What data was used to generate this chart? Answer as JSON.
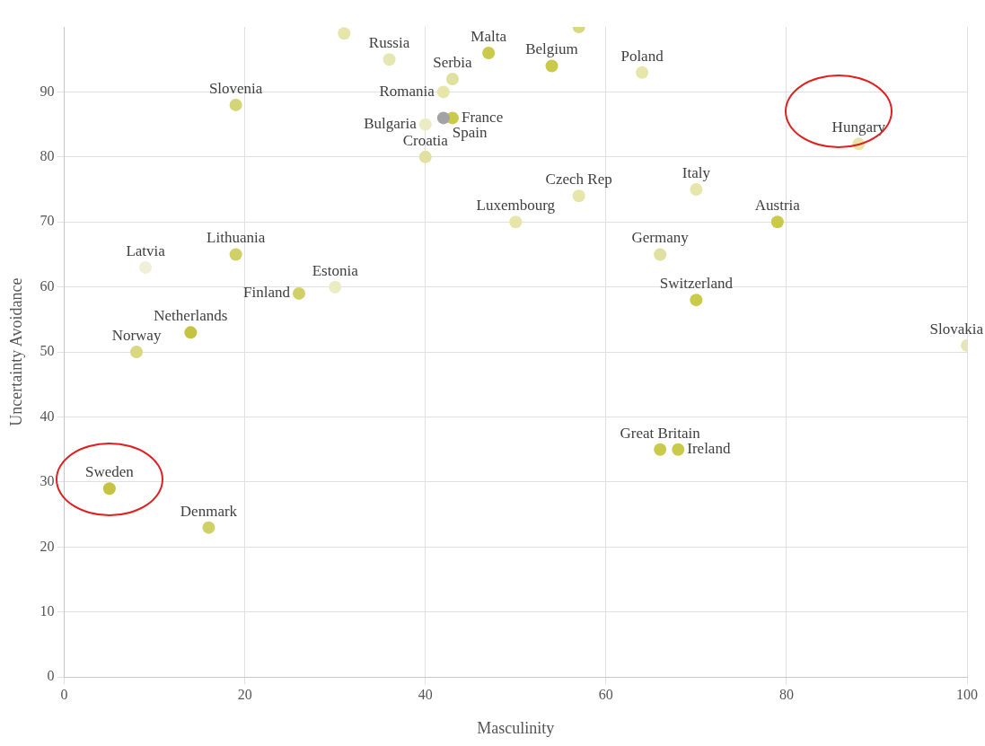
{
  "chart_data": {
    "type": "scatter",
    "xlabel": "Masculinity",
    "ylabel": "Uncertainty Avoidance",
    "xlim": [
      0,
      100
    ],
    "xticks": [
      0,
      20,
      40,
      60,
      80,
      100
    ],
    "ylim": [
      0,
      100
    ],
    "yticks": [
      0,
      10,
      20,
      30,
      40,
      50,
      60,
      70,
      80,
      90
    ],
    "grid": true,
    "legend": false,
    "marker": "circle",
    "x": [
      31,
      57,
      36,
      47,
      54,
      64,
      43,
      42,
      43,
      42,
      40,
      40,
      19,
      88,
      70,
      57,
      50,
      79,
      66,
      70,
      100,
      9,
      19,
      30,
      26,
      14,
      8,
      5,
      16,
      66,
      68
    ],
    "values": [
      99,
      100,
      95,
      96,
      94,
      93,
      92,
      90,
      86,
      86,
      85,
      80,
      88,
      82,
      75,
      74,
      70,
      70,
      65,
      58,
      51,
      63,
      65,
      60,
      59,
      53,
      50,
      29,
      23,
      35,
      35
    ],
    "colors": [
      "#e6e6aa",
      "#d8d880",
      "#e6e6b4",
      "#c9c94a",
      "#c9c94a",
      "#e6e6aa",
      "#e0e0a0",
      "#e6e6aa",
      "#c9c94a",
      "#a3a3a3",
      "#ececc4",
      "#e0e0a0",
      "#d4d478",
      "#e6e6aa",
      "#e6e6aa",
      "#e6e6aa",
      "#e6e6aa",
      "#c9c94a",
      "#e0e0a0",
      "#c9c94a",
      "#e6e6b4",
      "#f0f0d8",
      "#d0d068",
      "#ececc4",
      "#d0d068",
      "#c4c440",
      "#d8d880",
      "#c4c440",
      "#d0d068",
      "#c9c94a",
      "#c9c94a"
    ],
    "annotations": [
      {
        "text": "Russia",
        "x": 36,
        "y": 95
      },
      {
        "text": "Malta",
        "x": 47,
        "y": 96
      },
      {
        "text": "Belgium",
        "x": 54,
        "y": 94
      },
      {
        "text": "Poland",
        "x": 64,
        "y": 93
      },
      {
        "text": "Serbia",
        "x": 43,
        "y": 92
      },
      {
        "text": "Romania",
        "x": 42,
        "y": 90
      },
      {
        "text": "France",
        "x": 43,
        "y": 86
      },
      {
        "text": "Spain",
        "x": 42,
        "y": 86
      },
      {
        "text": "Bulgaria",
        "x": 40,
        "y": 85
      },
      {
        "text": "Croatia",
        "x": 40,
        "y": 80
      },
      {
        "text": "Slovenia",
        "x": 19,
        "y": 88
      },
      {
        "text": "Hungary",
        "x": 88,
        "y": 82
      },
      {
        "text": "Italy",
        "x": 70,
        "y": 75
      },
      {
        "text": "Czech Rep",
        "x": 57,
        "y": 74
      },
      {
        "text": "Luxembourg",
        "x": 50,
        "y": 70
      },
      {
        "text": "Austria",
        "x": 79,
        "y": 70
      },
      {
        "text": "Germany",
        "x": 66,
        "y": 65
      },
      {
        "text": "Switzerland",
        "x": 70,
        "y": 58
      },
      {
        "text": "Slovakia",
        "x": 100,
        "y": 51
      },
      {
        "text": "Latvia",
        "x": 9,
        "y": 63
      },
      {
        "text": "Lithuania",
        "x": 19,
        "y": 65
      },
      {
        "text": "Estonia",
        "x": 30,
        "y": 60
      },
      {
        "text": "Finland",
        "x": 26,
        "y": 59
      },
      {
        "text": "Netherlands",
        "x": 14,
        "y": 53
      },
      {
        "text": "Norway",
        "x": 8,
        "y": 50
      },
      {
        "text": "Sweden",
        "x": 5,
        "y": 29
      },
      {
        "text": "Denmark",
        "x": 16,
        "y": 23
      },
      {
        "text": "Great Britain",
        "x": 66,
        "y": 35
      },
      {
        "text": "Ireland",
        "x": 68,
        "y": 35
      }
    ]
  }
}
